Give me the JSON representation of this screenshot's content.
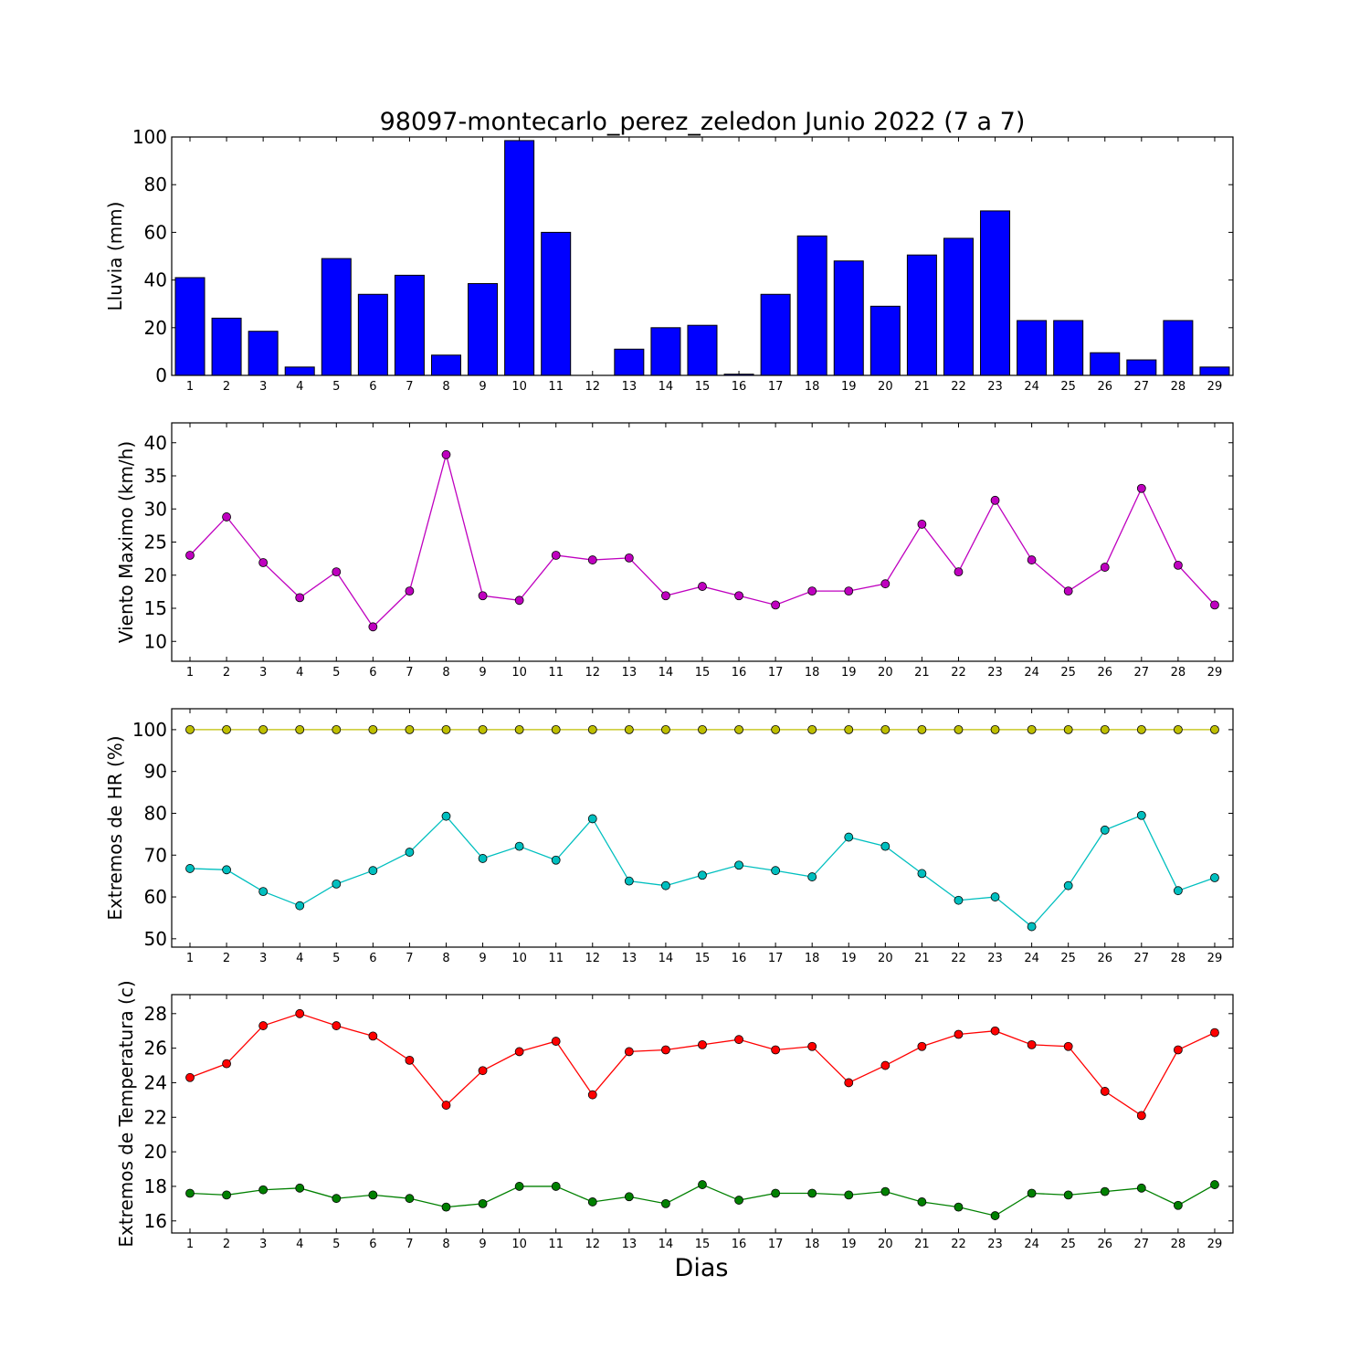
{
  "title": "98097-montecarlo_perez_zeledon Junio 2022  (7 a 7)",
  "xlabel": "Dias",
  "chart_data": [
    {
      "type": "bar",
      "ylabel": "Lluvia (mm)",
      "ylim": [
        0,
        100
      ],
      "yticks": [
        0,
        20,
        40,
        60,
        80,
        100
      ],
      "categories": [
        1,
        2,
        3,
        4,
        5,
        6,
        7,
        8,
        9,
        10,
        11,
        12,
        13,
        14,
        15,
        16,
        17,
        18,
        19,
        20,
        21,
        22,
        23,
        24,
        25,
        26,
        27,
        28,
        29
      ],
      "series": [
        {
          "color": "#0000ff",
          "values": [
            41,
            24,
            18.5,
            3.5,
            49,
            34,
            42,
            8.5,
            38.5,
            98.5,
            60,
            0,
            11,
            20,
            21,
            0.5,
            34,
            58.5,
            48,
            29,
            50.5,
            57.5,
            69,
            23,
            23,
            9.5,
            6.5,
            23,
            3.5
          ]
        }
      ]
    },
    {
      "type": "line",
      "ylabel": "Viento Maximo (km/h)",
      "ylim": [
        7,
        43
      ],
      "yticks": [
        10,
        15,
        20,
        25,
        30,
        35,
        40
      ],
      "categories": [
        1,
        2,
        3,
        4,
        5,
        6,
        7,
        8,
        9,
        10,
        11,
        12,
        13,
        14,
        15,
        16,
        17,
        18,
        19,
        20,
        21,
        22,
        23,
        24,
        25,
        26,
        27,
        28,
        29
      ],
      "series": [
        {
          "color": "#bf00bf",
          "values": [
            23,
            28.8,
            21.9,
            16.6,
            20.5,
            12.2,
            17.6,
            38.2,
            16.9,
            16.2,
            23,
            22.3,
            22.6,
            16.9,
            18.3,
            16.9,
            15.5,
            17.6,
            17.6,
            18.7,
            27.7,
            20.5,
            31.3,
            22.3,
            17.6,
            21.2,
            33.1,
            21.5,
            15.5
          ]
        }
      ]
    },
    {
      "type": "line",
      "ylabel": "Extremos de HR (%)",
      "ylim": [
        48,
        105
      ],
      "yticks": [
        50,
        60,
        70,
        80,
        90,
        100
      ],
      "categories": [
        1,
        2,
        3,
        4,
        5,
        6,
        7,
        8,
        9,
        10,
        11,
        12,
        13,
        14,
        15,
        16,
        17,
        18,
        19,
        20,
        21,
        22,
        23,
        24,
        25,
        26,
        27,
        28,
        29
      ],
      "series": [
        {
          "color": "#bfbf00",
          "values": [
            100,
            100,
            100,
            100,
            100,
            100,
            100,
            100,
            100,
            100,
            100,
            100,
            100,
            100,
            100,
            100,
            100,
            100,
            100,
            100,
            100,
            100,
            100,
            100,
            100,
            100,
            100,
            100,
            100
          ]
        },
        {
          "color": "#00bfbf",
          "values": [
            66.8,
            66.5,
            61.3,
            57.9,
            63.1,
            66.3,
            70.7,
            79.3,
            69.2,
            72.1,
            68.8,
            78.7,
            63.8,
            62.7,
            65.2,
            67.6,
            66.3,
            64.8,
            74.3,
            72.1,
            65.6,
            59.2,
            60,
            52.9,
            62.7,
            76,
            79.5,
            61.5,
            64.6
          ]
        }
      ]
    },
    {
      "type": "line",
      "ylabel": "Extremos de Temperatura (c)",
      "ylim": [
        15.3,
        29.1
      ],
      "yticks": [
        16,
        18,
        20,
        22,
        24,
        26,
        28
      ],
      "categories": [
        1,
        2,
        3,
        4,
        5,
        6,
        7,
        8,
        9,
        10,
        11,
        12,
        13,
        14,
        15,
        16,
        17,
        18,
        19,
        20,
        21,
        22,
        23,
        24,
        25,
        26,
        27,
        28,
        29
      ],
      "series": [
        {
          "color": "#ff0000",
          "values": [
            24.3,
            25.1,
            27.3,
            28,
            27.3,
            26.7,
            25.3,
            22.7,
            24.7,
            25.8,
            26.4,
            23.3,
            25.8,
            25.9,
            26.2,
            26.5,
            25.9,
            26.1,
            24,
            25,
            26.1,
            26.8,
            27,
            26.2,
            26.1,
            23.5,
            22.1,
            25.9,
            26.9
          ]
        },
        {
          "color": "#008000",
          "values": [
            17.6,
            17.5,
            17.8,
            17.9,
            17.3,
            17.5,
            17.3,
            16.8,
            17,
            18,
            18,
            17.1,
            17.4,
            17,
            18.1,
            17.2,
            17.6,
            17.6,
            17.5,
            17.7,
            17.1,
            16.8,
            16.3,
            17.6,
            17.5,
            17.7,
            17.9,
            16.9,
            18.1
          ]
        }
      ]
    }
  ]
}
